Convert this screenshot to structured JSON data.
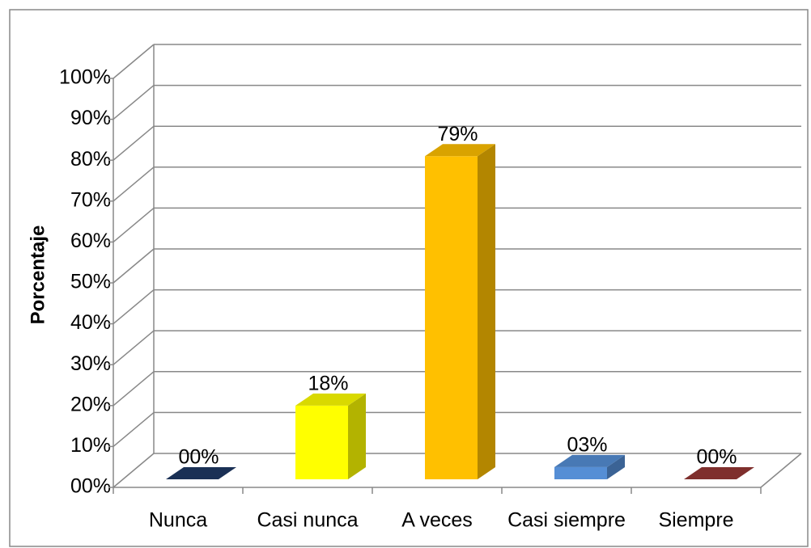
{
  "chart_data": {
    "type": "bar3d",
    "y_label": "Porcentaje",
    "categories": [
      "Nunca",
      "Casi nunca",
      "A veces",
      "Casi siempre",
      "Siempre"
    ],
    "values": [
      0,
      18,
      79,
      3,
      0
    ],
    "value_labels": [
      "00%",
      "18%",
      "79%",
      "03%",
      "00%"
    ],
    "colors": [
      "#1f3864",
      "#ffff00",
      "#ffc000",
      "#558ed5",
      "#953735"
    ],
    "ylim": [
      0,
      100
    ],
    "yticks": [
      {
        "value": 0,
        "label": "00%"
      },
      {
        "value": 10,
        "label": "10%"
      },
      {
        "value": 20,
        "label": "20%"
      },
      {
        "value": 30,
        "label": "30%"
      },
      {
        "value": 40,
        "label": "40%"
      },
      {
        "value": 50,
        "label": "50%"
      },
      {
        "value": 60,
        "label": "60%"
      },
      {
        "value": 70,
        "label": "70%"
      },
      {
        "value": 80,
        "label": "80%"
      },
      {
        "value": 90,
        "label": "90%"
      },
      {
        "value": 100,
        "label": "100%"
      }
    ],
    "grid": true
  }
}
